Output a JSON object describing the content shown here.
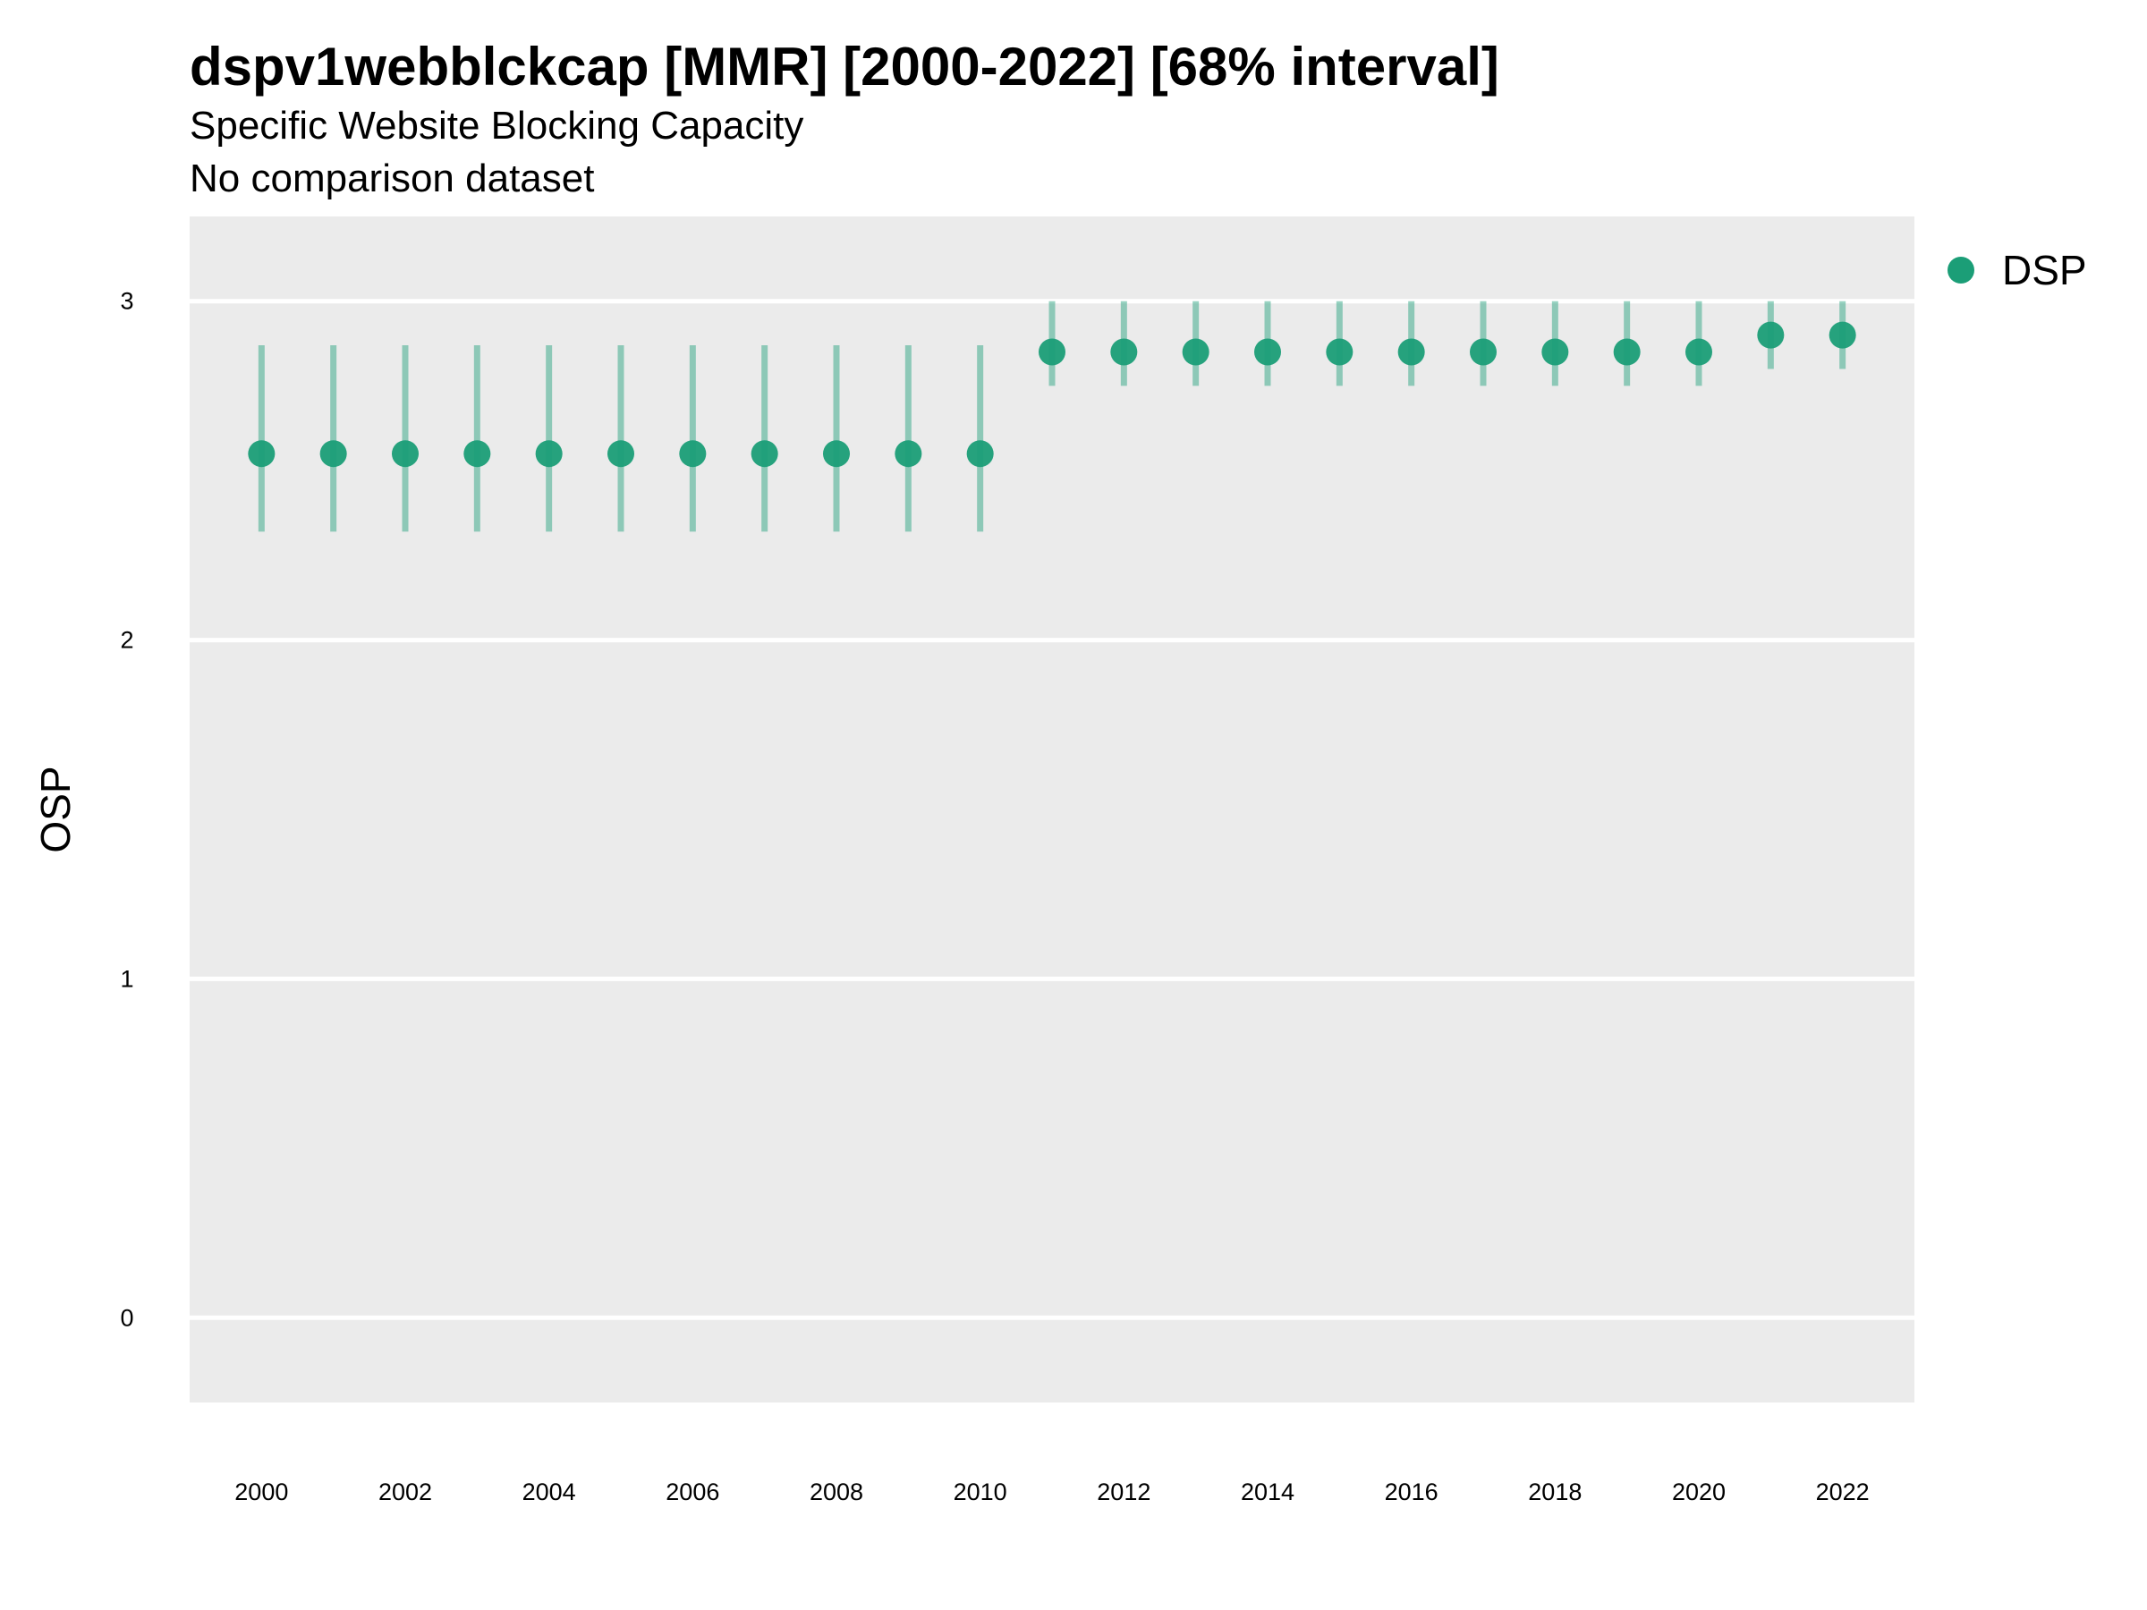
{
  "chart_data": {
    "type": "scatter",
    "title": "dspv1webblckcap [MMR] [2000-2022] [68% interval]",
    "subtitle": "Specific Website Blocking Capacity",
    "caption_line": "No comparison dataset",
    "xlabel": "",
    "ylabel": "OSP",
    "xlim": [
      1999,
      2023
    ],
    "ylim": [
      -0.25,
      3.25
    ],
    "grid": true,
    "legend_position": "right",
    "x_ticks": [
      "2000",
      "2002",
      "2004",
      "2006",
      "2008",
      "2010",
      "2012",
      "2014",
      "2016",
      "2018",
      "2020",
      "2022"
    ],
    "y_ticks": [
      "0",
      "1",
      "2",
      "3"
    ],
    "series": [
      {
        "name": "DSP",
        "color": "#1b9e77",
        "x": [
          2000,
          2001,
          2002,
          2003,
          2004,
          2005,
          2006,
          2007,
          2008,
          2009,
          2010,
          2011,
          2012,
          2013,
          2014,
          2015,
          2016,
          2017,
          2018,
          2019,
          2020,
          2021,
          2022
        ],
        "y": [
          2.55,
          2.55,
          2.55,
          2.55,
          2.55,
          2.55,
          2.55,
          2.55,
          2.55,
          2.55,
          2.55,
          2.85,
          2.85,
          2.85,
          2.85,
          2.85,
          2.85,
          2.85,
          2.85,
          2.85,
          2.85,
          2.9,
          2.9
        ],
        "lower": [
          2.32,
          2.32,
          2.32,
          2.32,
          2.32,
          2.32,
          2.32,
          2.32,
          2.32,
          2.32,
          2.32,
          2.75,
          2.75,
          2.75,
          2.75,
          2.75,
          2.75,
          2.75,
          2.75,
          2.75,
          2.75,
          2.8,
          2.8
        ],
        "upper": [
          2.87,
          2.87,
          2.87,
          2.87,
          2.87,
          2.87,
          2.87,
          2.87,
          2.87,
          2.87,
          2.87,
          3.0,
          3.0,
          3.0,
          3.0,
          3.0,
          3.0,
          3.0,
          3.0,
          3.0,
          3.0,
          3.0,
          3.0
        ]
      }
    ]
  }
}
